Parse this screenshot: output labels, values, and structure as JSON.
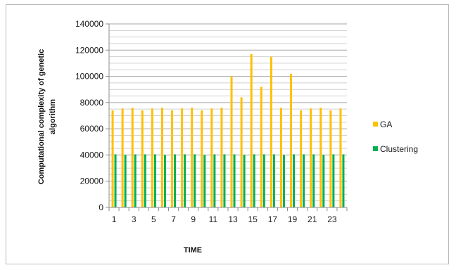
{
  "chart_data": {
    "type": "bar",
    "xlabel": "TIME",
    "ylabel_lines": [
      "Computational complexity of genetic",
      "algorithm"
    ],
    "categories": [
      "1",
      "2",
      "3",
      "4",
      "5",
      "6",
      "7",
      "8",
      "9",
      "10",
      "11",
      "12",
      "13",
      "14",
      "15",
      "16",
      "17",
      "18",
      "19",
      "20",
      "21",
      "22",
      "23",
      "24"
    ],
    "x_tick_labels": [
      "1",
      "3",
      "5",
      "7",
      "9",
      "11",
      "13",
      "15",
      "17",
      "19",
      "21",
      "23"
    ],
    "ylim": [
      0,
      140000
    ],
    "y_ticks": [
      "0",
      "20000",
      "40000",
      "60000",
      "80000",
      "100000",
      "120000",
      "140000"
    ],
    "grid": true,
    "legend_position": "right",
    "series": [
      {
        "name": "GA",
        "color": "#FFC000",
        "values": [
          74000,
          75500,
          76000,
          74000,
          75500,
          76000,
          74000,
          75500,
          76000,
          74000,
          75500,
          76000,
          100000,
          84000,
          117000,
          92000,
          115000,
          76000,
          102000,
          74000,
          75500,
          76000,
          74000,
          75500
        ]
      },
      {
        "name": "Clustering",
        "color": "#00B050",
        "values": [
          40500,
          40000,
          40500,
          40500,
          40500,
          40000,
          40500,
          40500,
          40500,
          40000,
          40500,
          40500,
          40500,
          40000,
          40500,
          40500,
          40500,
          40000,
          40500,
          40500,
          40500,
          40000,
          40500,
          40500
        ]
      }
    ]
  }
}
